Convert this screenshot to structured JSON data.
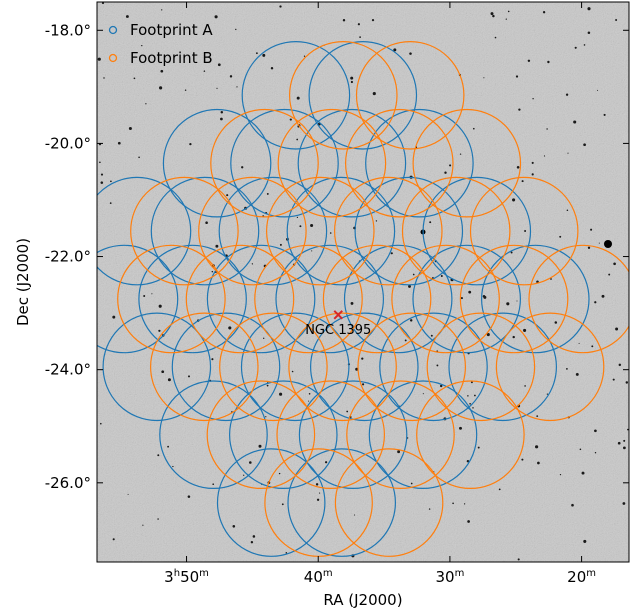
{
  "chart_data": {
    "type": "scatter",
    "xlabel": "RA (J2000)",
    "ylabel": "Dec (J2000)",
    "x_ticks": [
      {
        "value": 57.5,
        "h": "3",
        "m": "50"
      },
      {
        "value": 55.0,
        "h": "",
        "m": "40"
      },
      {
        "value": 52.5,
        "h": "",
        "m": "30"
      },
      {
        "value": 50.0,
        "h": "",
        "m": "20"
      }
    ],
    "y_ticks": [
      {
        "value": -18,
        "label": "-18.0°"
      },
      {
        "value": -20,
        "label": "-20.0°"
      },
      {
        "value": -22,
        "label": "-22.0°"
      },
      {
        "value": -24,
        "label": "-24.0°"
      },
      {
        "value": -26,
        "label": "-26.0°"
      }
    ],
    "xlim": [
      59.2,
      49.1
    ],
    "ylim": [
      -27.4,
      -17.5
    ],
    "legend_position": "top-left",
    "footprint_radius_deg": 0.95,
    "background": "grayscale sky survey image",
    "colors": {
      "A": "#1f77b4",
      "B": "#ff7f0e",
      "target": "#d62728"
    },
    "series": [
      {
        "name": "Footprint A",
        "center": [
          55.0,
          -22.75
        ],
        "offsets": [
          [
            -0.8,
            -3.6
          ],
          [
            0.4,
            -3.6
          ],
          [
            -1.8,
            -2.4
          ],
          [
            -0.6,
            -2.4
          ],
          [
            0.6,
            -2.4
          ],
          [
            1.8,
            -2.4
          ],
          [
            -2.8,
            -1.2
          ],
          [
            -1.6,
            -1.2
          ],
          [
            -0.4,
            -1.2
          ],
          [
            0.8,
            -1.2
          ],
          [
            2.0,
            -1.2
          ],
          [
            3.2,
            -1.2
          ],
          [
            -3.4,
            0
          ],
          [
            -2.2,
            0
          ],
          [
            -1.0,
            0
          ],
          [
            0.2,
            0
          ],
          [
            1.4,
            0
          ],
          [
            2.6,
            0
          ],
          [
            3.8,
            0
          ],
          [
            -3.2,
            1.2
          ],
          [
            -2.0,
            1.2
          ],
          [
            -0.8,
            1.2
          ],
          [
            0.4,
            1.2
          ],
          [
            1.6,
            1.2
          ],
          [
            2.8,
            1.2
          ],
          [
            -1.8,
            2.4
          ],
          [
            -0.6,
            2.4
          ],
          [
            0.6,
            2.4
          ],
          [
            1.8,
            2.4
          ],
          [
            -0.4,
            3.6
          ],
          [
            0.8,
            3.6
          ]
        ]
      },
      {
        "name": "Footprint B",
        "center": [
          54.1,
          -22.75
        ],
        "offsets": [
          [
            -0.8,
            -3.6
          ],
          [
            0.4,
            -3.6
          ],
          [
            -1.8,
            -2.4
          ],
          [
            -0.6,
            -2.4
          ],
          [
            0.6,
            -2.4
          ],
          [
            1.8,
            -2.4
          ],
          [
            -2.8,
            -1.2
          ],
          [
            -1.6,
            -1.2
          ],
          [
            -0.4,
            -1.2
          ],
          [
            0.8,
            -1.2
          ],
          [
            2.0,
            -1.2
          ],
          [
            3.2,
            -1.2
          ],
          [
            -3.4,
            0
          ],
          [
            -2.2,
            0
          ],
          [
            -1.0,
            0
          ],
          [
            0.2,
            0
          ],
          [
            1.4,
            0
          ],
          [
            2.6,
            0
          ],
          [
            3.8,
            0
          ],
          [
            -3.2,
            1.2
          ],
          [
            -2.0,
            1.2
          ],
          [
            -0.8,
            1.2
          ],
          [
            0.4,
            1.2
          ],
          [
            1.6,
            1.2
          ],
          [
            2.8,
            1.2
          ],
          [
            -1.8,
            2.4
          ],
          [
            -0.6,
            2.4
          ],
          [
            0.6,
            2.4
          ],
          [
            1.8,
            2.4
          ],
          [
            -0.4,
            3.6
          ],
          [
            0.8,
            3.6
          ]
        ]
      }
    ],
    "target": {
      "name": "NGC 1395",
      "ra": 54.62,
      "dec": -23.03
    }
  }
}
